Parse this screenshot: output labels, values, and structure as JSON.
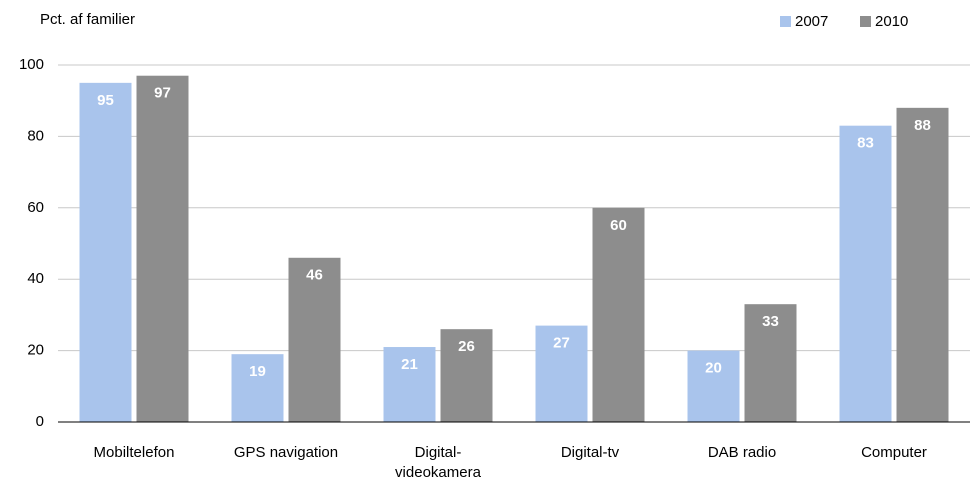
{
  "chart_data": {
    "type": "bar",
    "y_label": "Pct. af familier",
    "categories": [
      "Mobiltelefon",
      "GPS navigation",
      "Digital-videokamera",
      "Digital-tv",
      "DAB radio",
      "Computer"
    ],
    "series": [
      {
        "name": "2007",
        "color": "#a9c4ec",
        "values": [
          95,
          19,
          21,
          27,
          20,
          83
        ]
      },
      {
        "name": "2010",
        "color": "#8d8d8d",
        "values": [
          97,
          46,
          26,
          60,
          33,
          88
        ]
      }
    ],
    "ylim": [
      0,
      100
    ],
    "yticks": [
      0,
      20,
      40,
      60,
      80,
      100
    ],
    "grid": true,
    "legend": "top-right"
  }
}
